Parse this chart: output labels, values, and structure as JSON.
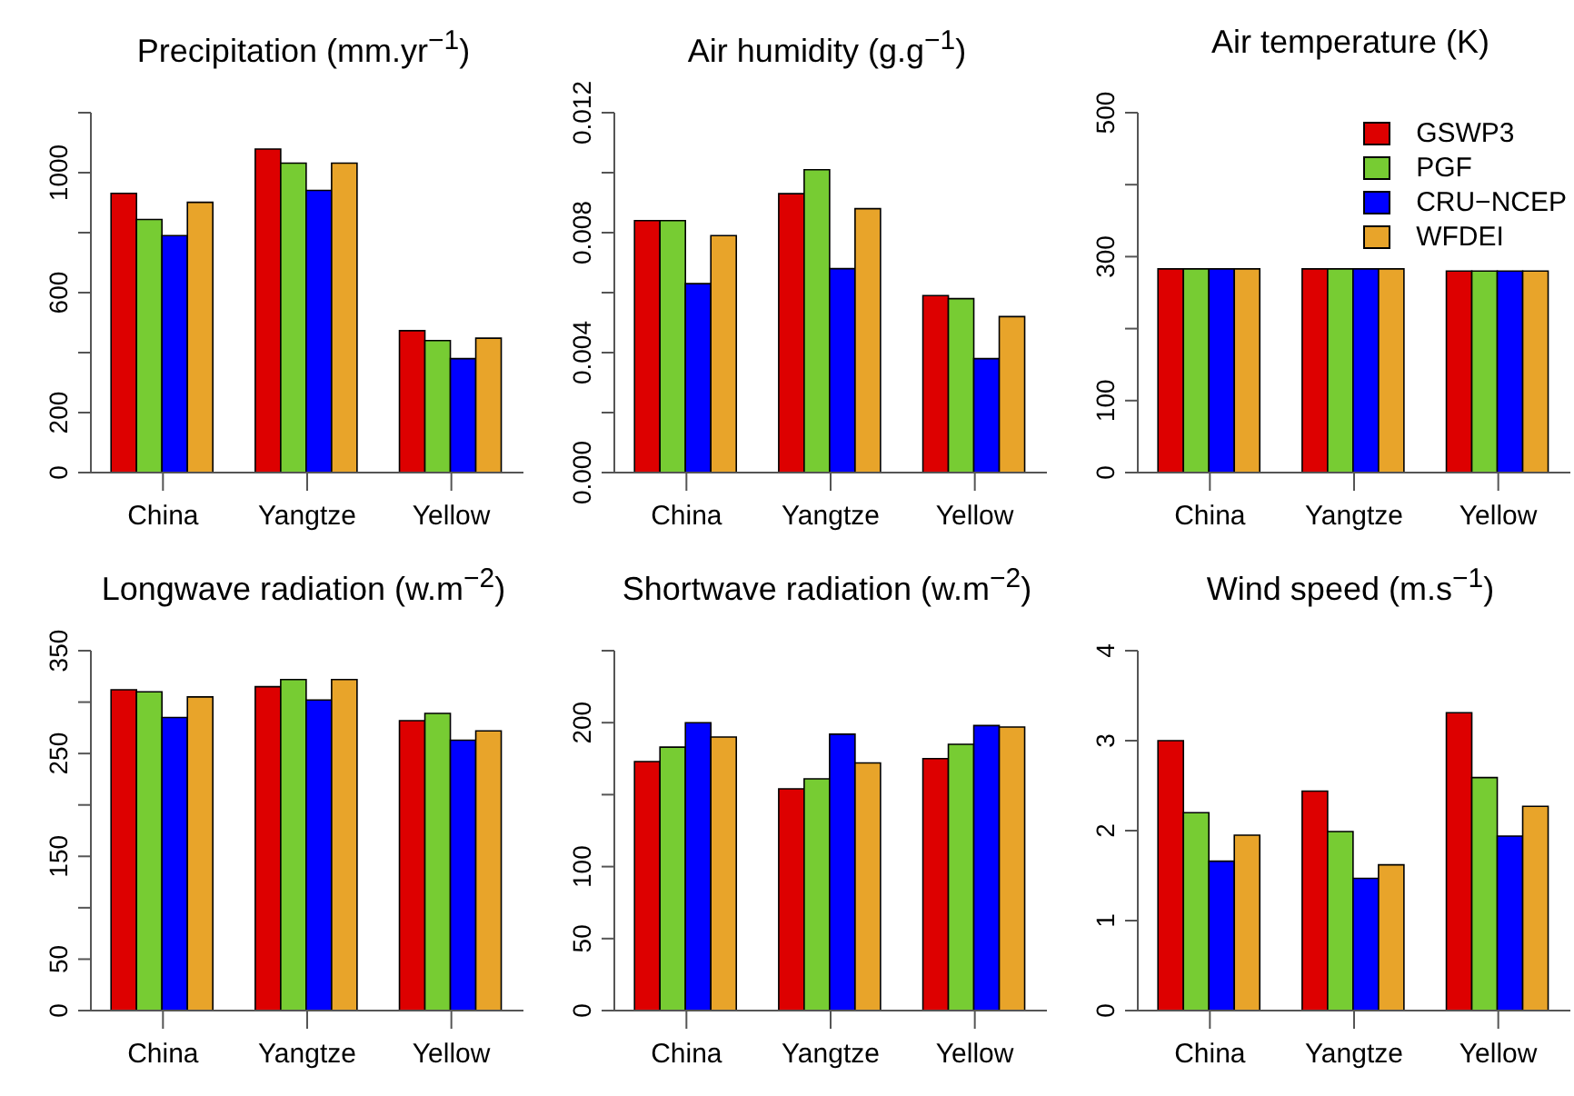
{
  "chart_data": [
    {
      "type": "bar",
      "title": "Precipitation (mm.yr$^{−1}$)",
      "categories": [
        "China",
        "Yangtze",
        "Yellow"
      ],
      "series": [
        {
          "color": "#dd0000",
          "values": [
            931,
            1079,
            473
          ]
        },
        {
          "color": "#77cc33",
          "values": [
            844,
            1032,
            440
          ]
        },
        {
          "color": "#0000ff",
          "values": [
            790,
            941,
            380
          ]
        },
        {
          "color": "#e8a42a",
          "values": [
            901,
            1032,
            448
          ]
        }
      ],
      "ylim": [
        0,
        1200
      ],
      "yticks": [
        0,
        200,
        {
          "value": 400,
          "label": null
        },
        600,
        {
          "value": 800,
          "label": null
        },
        1000,
        {
          "value": 1200,
          "label": null
        }
      ],
      "grid": false,
      "legend": false
    },
    {
      "type": "bar",
      "title": "Air humidity (g.g$^{−1}$)",
      "categories": [
        "China",
        "Yangtze",
        "Yellow"
      ],
      "series": [
        {
          "color": "#dd0000",
          "values": [
            0.0084,
            0.0093,
            0.0059
          ]
        },
        {
          "color": "#77cc33",
          "values": [
            0.0084,
            0.0101,
            0.0058
          ]
        },
        {
          "color": "#0000ff",
          "values": [
            0.0063,
            0.0068,
            0.0038
          ]
        },
        {
          "color": "#e8a42a",
          "values": [
            0.0079,
            0.0088,
            0.0052
          ]
        }
      ],
      "ylim": [
        0,
        0.012
      ],
      "yticks": [
        {
          "value": 0,
          "label": "0.000"
        },
        {
          "value": 0.002,
          "label": null
        },
        {
          "value": 0.004,
          "label": "0.004"
        },
        {
          "value": 0.006,
          "label": null
        },
        {
          "value": 0.008,
          "label": "0.008"
        },
        {
          "value": 0.01,
          "label": null
        },
        {
          "value": 0.012,
          "label": "0.012"
        }
      ],
      "grid": false,
      "legend": false
    },
    {
      "type": "bar",
      "title": "Air temperature (K)",
      "categories": [
        "China",
        "Yangtze",
        "Yellow"
      ],
      "series": [
        {
          "name": "GSWP3",
          "color": "#dd0000",
          "values": [
            283,
            283,
            280
          ]
        },
        {
          "name": "PGF",
          "color": "#77cc33",
          "values": [
            283,
            283,
            280
          ]
        },
        {
          "name": "CRU−NCEP",
          "color": "#0000ff",
          "values": [
            283,
            283,
            280
          ]
        },
        {
          "name": "WFDEI",
          "color": "#e8a42a",
          "values": [
            283,
            283,
            280
          ]
        }
      ],
      "ylim": [
        0,
        500
      ],
      "yticks": [
        0,
        100,
        {
          "value": 200,
          "label": null
        },
        300,
        {
          "value": 400,
          "label": null
        },
        500
      ],
      "grid": false,
      "legend": "top right"
    },
    {
      "type": "bar",
      "title": "Longwave radiation (w.m$^{−2}$)",
      "categories": [
        "China",
        "Yangtze",
        "Yellow"
      ],
      "series": [
        {
          "color": "#dd0000",
          "values": [
            312,
            315,
            282
          ]
        },
        {
          "color": "#77cc33",
          "values": [
            310,
            322,
            289
          ]
        },
        {
          "color": "#0000ff",
          "values": [
            285,
            302,
            263
          ]
        },
        {
          "color": "#e8a42a",
          "values": [
            305,
            322,
            272
          ]
        }
      ],
      "ylim": [
        0,
        350
      ],
      "yticks": [
        0,
        50,
        {
          "value": 100,
          "label": null
        },
        150,
        {
          "value": 200,
          "label": null
        },
        250,
        {
          "value": 300,
          "label": null
        },
        350
      ],
      "grid": false,
      "legend": false
    },
    {
      "type": "bar",
      "title": "Shortwave radiation (w.m$^{−2}$)",
      "categories": [
        "China",
        "Yangtze",
        "Yellow"
      ],
      "series": [
        {
          "color": "#dd0000",
          "values": [
            173,
            154,
            175
          ]
        },
        {
          "color": "#77cc33",
          "values": [
            183,
            161,
            185
          ]
        },
        {
          "color": "#0000ff",
          "values": [
            200,
            192,
            198
          ]
        },
        {
          "color": "#e8a42a",
          "values": [
            190,
            172,
            197
          ]
        }
      ],
      "ylim": [
        0,
        250
      ],
      "yticks": [
        0,
        50,
        100,
        {
          "value": 150,
          "label": null
        },
        200,
        {
          "value": 250,
          "label": null
        }
      ],
      "grid": false,
      "legend": false
    },
    {
      "type": "bar",
      "title": "Wind speed (m.s$^{−1}$)",
      "categories": [
        "China",
        "Yangtze",
        "Yellow"
      ],
      "series": [
        {
          "color": "#dd0000",
          "values": [
            3.0,
            2.44,
            3.31
          ]
        },
        {
          "color": "#77cc33",
          "values": [
            2.2,
            1.99,
            2.59
          ]
        },
        {
          "color": "#0000ff",
          "values": [
            1.66,
            1.47,
            1.94
          ]
        },
        {
          "color": "#e8a42a",
          "values": [
            1.95,
            1.62,
            2.27
          ]
        }
      ],
      "ylim": [
        0,
        4
      ],
      "yticks": [
        0,
        1,
        2,
        3,
        4
      ],
      "grid": false,
      "legend": false
    }
  ]
}
